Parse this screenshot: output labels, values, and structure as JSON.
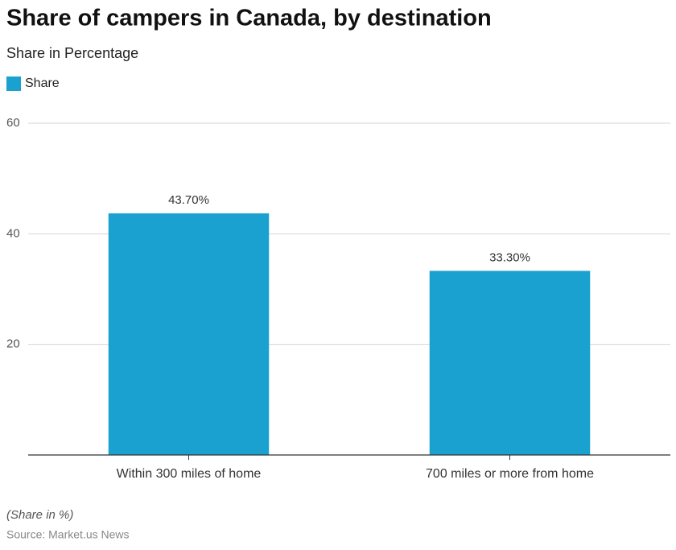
{
  "chart_data": {
    "type": "bar",
    "title": "Share of campers in Canada, by destination",
    "subtitle": "Share in Percentage",
    "categories": [
      "Within 300 miles of home",
      "700 miles or more from home"
    ],
    "series": [
      {
        "name": "Share",
        "color": "#1ba1cf",
        "values": [
          43.7,
          33.3
        ],
        "value_labels": [
          "43.70%",
          "33.30%"
        ]
      }
    ],
    "ylim": [
      0,
      60
    ],
    "yticks": [
      20,
      40,
      60
    ],
    "grid": true,
    "footnote": "(Share in %)",
    "source": "Source: Market.us News"
  }
}
